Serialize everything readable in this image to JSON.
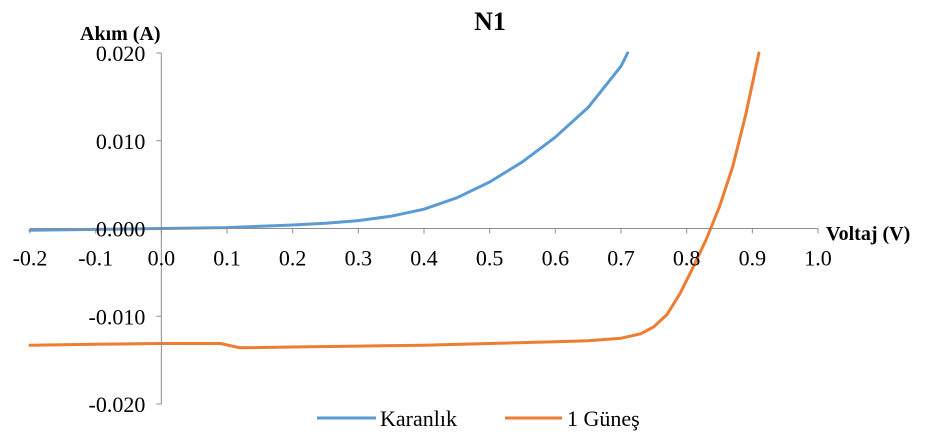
{
  "chart_data": {
    "type": "line",
    "title": "N1",
    "xlabel": "Voltaj (V)",
    "ylabel": "Akım (A)",
    "xlim": [
      -0.2,
      1.0
    ],
    "ylim": [
      -0.02,
      0.02
    ],
    "x_ticks": [
      "-0.2",
      "-0.1",
      "0.0",
      "0.1",
      "0.2",
      "0.3",
      "0.4",
      "0.5",
      "0.6",
      "0.7",
      "0.8",
      "0.9",
      "1.0"
    ],
    "y_ticks": [
      "0.020",
      "0.010",
      "0.000",
      "-0.010",
      "-0.020"
    ],
    "grid": false,
    "legend_position": "bottom",
    "series": [
      {
        "name": "Karanlık",
        "color": "#5B9BD5",
        "x": [
          -0.2,
          -0.1,
          0.0,
          0.1,
          0.2,
          0.25,
          0.3,
          0.35,
          0.4,
          0.45,
          0.5,
          0.55,
          0.6,
          0.65,
          0.7,
          0.71
        ],
        "y": [
          -0.0002,
          -0.0001,
          0.0,
          0.0001,
          0.0004,
          0.0006,
          0.0009,
          0.0014,
          0.0022,
          0.0035,
          0.0053,
          0.0076,
          0.0104,
          0.0138,
          0.0185,
          0.02
        ]
      },
      {
        "name": "1 Güneş",
        "color": "#ED7D31",
        "x": [
          -0.2,
          -0.1,
          0.0,
          0.09,
          0.12,
          0.2,
          0.3,
          0.4,
          0.5,
          0.6,
          0.65,
          0.7,
          0.73,
          0.75,
          0.77,
          0.79,
          0.81,
          0.83,
          0.85,
          0.87,
          0.89,
          0.91
        ],
        "y": [
          -0.0133,
          -0.0132,
          -0.0131,
          -0.0131,
          -0.0136,
          -0.0135,
          -0.0134,
          -0.0133,
          -0.0131,
          -0.0129,
          -0.0128,
          -0.0125,
          -0.012,
          -0.0112,
          -0.0098,
          -0.0074,
          -0.0044,
          -0.0012,
          0.0025,
          0.007,
          0.013,
          0.02
        ]
      }
    ]
  }
}
